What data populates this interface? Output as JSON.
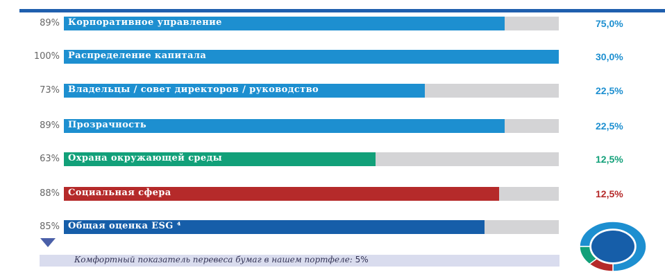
{
  "chart_data": {
    "type": "bar",
    "orientation": "horizontal",
    "categories": [
      "Корпоративное управление",
      "Распределение капитала",
      "Владельцы / совет директоров / руководство",
      "Прозрачность",
      "Охрана окружающей среды",
      "Социальная сфера",
      "Общая оценка ESG ⁴"
    ],
    "values": [
      89,
      100,
      73,
      89,
      63,
      88,
      85
    ],
    "value_labels": [
      "89%",
      "100%",
      "73%",
      "89%",
      "63%",
      "88%",
      "85%"
    ],
    "weights": [
      "75,0%",
      "30,0%",
      "22,5%",
      "22,5%",
      "12,5%",
      "12,5%",
      ""
    ],
    "colors": [
      "#1d8fd0",
      "#1d8fd0",
      "#1d8fd0",
      "#1d8fd0",
      "#12a079",
      "#b52a2a",
      "#165ea9"
    ],
    "weight_colors": [
      "#1d8fd0",
      "#1d8fd0",
      "#1d8fd0",
      "#1d8fd0",
      "#12a079",
      "#b52a2a",
      ""
    ],
    "xlim": [
      0,
      100
    ],
    "note": "Комфортный показатель перевеса бумаг в нашем портфеле:",
    "note_value": "5%",
    "marker_value": 0,
    "donut_segments": [
      {
        "name": "Корпоративное управление",
        "value": 75,
        "color": "#1d8fd0"
      },
      {
        "name": "Социальная сфера",
        "value": 12.5,
        "color": "#b52a2a"
      },
      {
        "name": "Охрана окружающей среды",
        "value": 12.5,
        "color": "#12a079"
      }
    ],
    "donut_center_color": "#165ea9"
  }
}
